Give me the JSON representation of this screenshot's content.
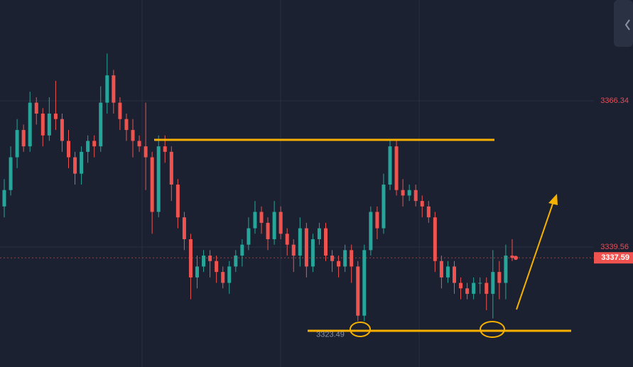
{
  "chart_data": {
    "type": "candlestick",
    "up_color": "#26a69a",
    "down_color": "#ef5350",
    "ylim": [
      3317.6,
      3384.8
    ],
    "yticks": [
      3366.34,
      3339.56
    ],
    "grid": true,
    "last_price": 3337.59,
    "low_label": 3323.49,
    "open": [
      3347,
      3350,
      3356,
      3361,
      3358,
      3366,
      3364,
      3360,
      3364,
      3363,
      3359,
      3356,
      3353,
      3357,
      3359,
      3358,
      3366,
      3371,
      3366,
      3363,
      3361,
      3359,
      3358,
      3356,
      3346,
      3358,
      3357,
      3351,
      3345,
      3341,
      3334,
      3336,
      3338,
      3337,
      3335,
      3333,
      3336,
      3338,
      3340,
      3343,
      3346,
      3344,
      3341,
      3346,
      3342,
      3340,
      3338,
      3343,
      3336,
      3341,
      3343,
      3338,
      3337,
      3336,
      3339,
      3336,
      3327,
      3339,
      3346,
      3343,
      3351,
      3358,
      3350,
      3349,
      3350,
      3348,
      3347,
      3345,
      3337,
      3334,
      3336,
      3333,
      3332,
      3331,
      3333,
      3333,
      3331,
      3335,
      3333,
      3338
    ],
    "high": [
      3352,
      3358,
      3363,
      3362,
      3368,
      3367,
      3365,
      3367,
      3370,
      3364,
      3361,
      3357,
      3358,
      3360,
      3360,
      3369,
      3375,
      3372,
      3367,
      3364,
      3363,
      3360,
      3366,
      3357,
      3360,
      3360,
      3358,
      3352,
      3346,
      3342,
      3338,
      3339,
      3339,
      3338,
      3336,
      3337,
      3339,
      3341,
      3345,
      3348,
      3347,
      3345,
      3348,
      3347,
      3343,
      3341,
      3345,
      3344,
      3342,
      3344,
      3344,
      3339,
      3338,
      3340,
      3340,
      3337,
      3340,
      3347,
      3347,
      3353,
      3359,
      3359,
      3352,
      3351,
      3351,
      3349,
      3348,
      3346,
      3338,
      3337,
      3337,
      3334,
      3333,
      3334,
      3334,
      3334,
      3339,
      3337,
      3340,
      3341
    ],
    "low": [
      3345,
      3349,
      3354,
      3357,
      3357,
      3362,
      3358,
      3359,
      3361,
      3357,
      3354,
      3351,
      3351,
      3355,
      3356,
      3357,
      3364,
      3364,
      3361,
      3359,
      3356,
      3357,
      3350,
      3342,
      3345,
      3355,
      3348,
      3343,
      3339,
      3330,
      3332,
      3335,
      3334,
      3333,
      3332,
      3331,
      3335,
      3336,
      3339,
      3342,
      3342,
      3339,
      3340,
      3341,
      3338,
      3335,
      3336,
      3334,
      3335,
      3340,
      3337,
      3335,
      3334,
      3335,
      3333,
      3326,
      3326,
      3338,
      3341,
      3342,
      3350,
      3349,
      3347,
      3348,
      3347,
      3345,
      3344,
      3335,
      3332,
      3333,
      3331,
      3330,
      3330,
      3330,
      3331,
      3328,
      3326.5,
      3330,
      3330,
      3337
    ],
    "close": [
      3350,
      3356,
      3361,
      3358,
      3366,
      3364,
      3360,
      3364,
      3363,
      3359,
      3356,
      3353,
      3357,
      3359,
      3358,
      3366,
      3371,
      3366,
      3363,
      3361,
      3359,
      3358,
      3356,
      3346,
      3358,
      3357,
      3351,
      3345,
      3341,
      3334,
      3336,
      3338,
      3337,
      3335,
      3333,
      3336,
      3338,
      3340,
      3343,
      3346,
      3344,
      3341,
      3346,
      3342,
      3340,
      3338,
      3343,
      3336,
      3341,
      3343,
      3338,
      3337,
      3336,
      3339,
      3336,
      3327,
      3339,
      3346,
      3343,
      3351,
      3358,
      3350,
      3349,
      3350,
      3348,
      3347,
      3345,
      3337,
      3334,
      3336,
      3333,
      3332,
      3331,
      3333,
      3333,
      3331,
      3335,
      3333,
      3338,
      3337.59
    ]
  }
}
